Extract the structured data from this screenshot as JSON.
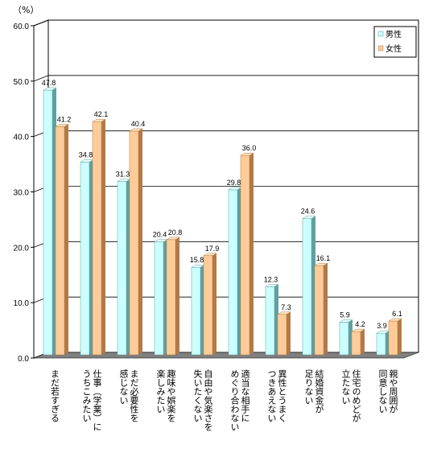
{
  "chart_data": {
    "type": "bar",
    "unit_label": "（%）",
    "ylim": [
      0,
      60
    ],
    "yticks": [
      "0.0",
      "10.0",
      "20.0",
      "30.0",
      "40.0",
      "50.0",
      "60.0"
    ],
    "categories": [
      [
        "まだ若すぎる"
      ],
      [
        "仕事（学業）に",
        "うちこみたい"
      ],
      [
        "まだ必要性を",
        "感じない"
      ],
      [
        "趣味や娯楽を",
        "楽しみたい"
      ],
      [
        "自由や気楽さを",
        "失いたくない"
      ],
      [
        "適当な相手に",
        "めぐり合わない"
      ],
      [
        "異性とうまく",
        "つきあえない"
      ],
      [
        "結婚資金が",
        "足りない"
      ],
      [
        "住宅のめどが",
        "立たない"
      ],
      [
        "親や周囲が",
        "同意しない"
      ]
    ],
    "series": [
      {
        "name": "男性",
        "values": [
          47.8,
          34.8,
          31.3,
          20.4,
          15.8,
          29.8,
          12.3,
          24.6,
          5.9,
          3.9
        ],
        "labels": [
          "47.8",
          "34.8",
          "31.3",
          "20.4",
          "15.8",
          "29.8",
          "12.3",
          "24.6",
          "5.9",
          "3.9"
        ]
      },
      {
        "name": "女性",
        "values": [
          41.2,
          42.1,
          40.4,
          20.8,
          17.9,
          36.0,
          7.3,
          16.1,
          4.2,
          6.1
        ],
        "labels": [
          "41.2",
          "42.1",
          "40.4",
          "20.8",
          "17.9",
          "36.0",
          "7.3",
          "16.1",
          "4.2",
          "6.1"
        ]
      }
    ],
    "colors": {
      "male_front": "#ccffff",
      "male_side": "#5fa0a0",
      "male_top": "#eaffff",
      "female_front": "#ffcc99",
      "female_side": "#b27a47",
      "female_top": "#ffe3c2",
      "floor": "#808080",
      "wall": "#ffffff",
      "grid": "#000000"
    },
    "legend_placement": "top-right",
    "grid": true
  }
}
